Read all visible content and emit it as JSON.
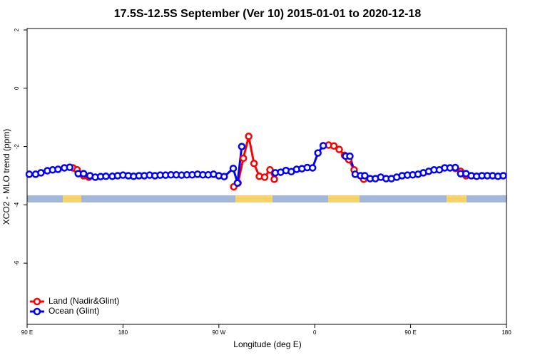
{
  "chart_data": {
    "type": "line",
    "title": "17.5S-12.5S September (Ver 10)   2015-01-01 to 2020-12-18",
    "x_label": "Longitude (deg E)",
    "y_label": "XCO2 - MLO trend (ppm)",
    "xlim": [
      90,
      540
    ],
    "xticks": [
      {
        "value": 90,
        "label": "90 E"
      },
      {
        "value": 180,
        "label": "180"
      },
      {
        "value": 270,
        "label": "90 W"
      },
      {
        "value": 360,
        "label": "0"
      },
      {
        "value": 450,
        "label": "90 E"
      },
      {
        "value": 540,
        "label": "180"
      }
    ],
    "ylim": [
      -8.1,
      2.05
    ],
    "yticks": [
      2,
      0,
      -2,
      -4,
      -6
    ],
    "legend": "bottom-left",
    "series": [
      {
        "name": "Land (Nadir&Glint)",
        "color": "#ff0000",
        "x": [
          133,
          137,
          143,
          148,
          160,
          284,
          288,
          293,
          298,
          303,
          308,
          313,
          318,
          322,
          340,
          373,
          378,
          383,
          388,
          392,
          397,
          406,
          450,
          492,
          497,
          502
        ],
        "values": [
          -2.73,
          -2.8,
          -3.0,
          -3.05,
          null,
          -3.38,
          -3.25,
          -2.4,
          -1.65,
          -2.58,
          -3.02,
          -3.05,
          -2.8,
          -3.12,
          null,
          -1.95,
          -1.98,
          -2.1,
          -2.3,
          -2.45,
          -2.8,
          -3.12,
          null,
          -2.75,
          -2.85,
          -3.0
        ]
      },
      {
        "name": "Ocean (Glint)",
        "color": "#0000ff",
        "x": [
          92,
          98,
          103,
          109,
          114,
          119,
          125,
          130,
          138,
          143,
          149,
          154,
          159,
          164,
          170,
          175,
          180,
          185,
          190,
          195,
          200,
          205,
          210,
          215,
          220,
          225,
          230,
          235,
          240,
          245,
          250,
          255,
          260,
          265,
          270,
          275,
          283.5,
          287.5,
          291.5,
          305,
          323,
          328,
          333,
          338,
          343,
          348,
          353,
          358,
          363,
          368,
          378,
          389,
          393,
          398,
          403,
          407,
          412,
          417,
          422,
          427,
          432,
          437,
          442,
          447,
          452,
          457,
          462,
          467,
          472,
          477,
          482,
          487,
          492,
          497,
          502,
          507,
          512,
          517,
          522,
          527,
          532,
          537
        ],
        "values": [
          -2.95,
          -2.95,
          -2.9,
          -2.83,
          -2.8,
          -2.78,
          -2.73,
          -2.71,
          -2.93,
          -2.93,
          -3.0,
          -3.05,
          -3.03,
          -3.02,
          -3.02,
          -3.0,
          -2.98,
          -3.0,
          -3.02,
          -3.0,
          -3.0,
          -2.98,
          -3.0,
          -2.98,
          -2.98,
          -2.97,
          -2.97,
          -2.98,
          -2.97,
          -2.97,
          -2.95,
          -2.97,
          -2.97,
          -2.95,
          -3.0,
          -3.03,
          -2.75,
          -3.25,
          -2.0,
          null,
          -2.9,
          -2.88,
          -2.82,
          -2.86,
          -2.78,
          -2.76,
          -2.72,
          -2.73,
          -2.22,
          -1.97,
          null,
          -2.33,
          -2.33,
          -2.95,
          -3.0,
          -3.0,
          -3.1,
          -3.1,
          -3.05,
          -3.1,
          -3.1,
          -3.05,
          -3.0,
          -2.98,
          -2.97,
          -2.95,
          -2.9,
          -2.85,
          -2.8,
          -2.8,
          -2.73,
          -2.73,
          -2.72,
          -2.93,
          -2.93,
          -3.0,
          -3.02,
          -3.0,
          -3.0,
          -3.0,
          -3.02,
          -3.0
        ]
      }
    ]
  }
}
